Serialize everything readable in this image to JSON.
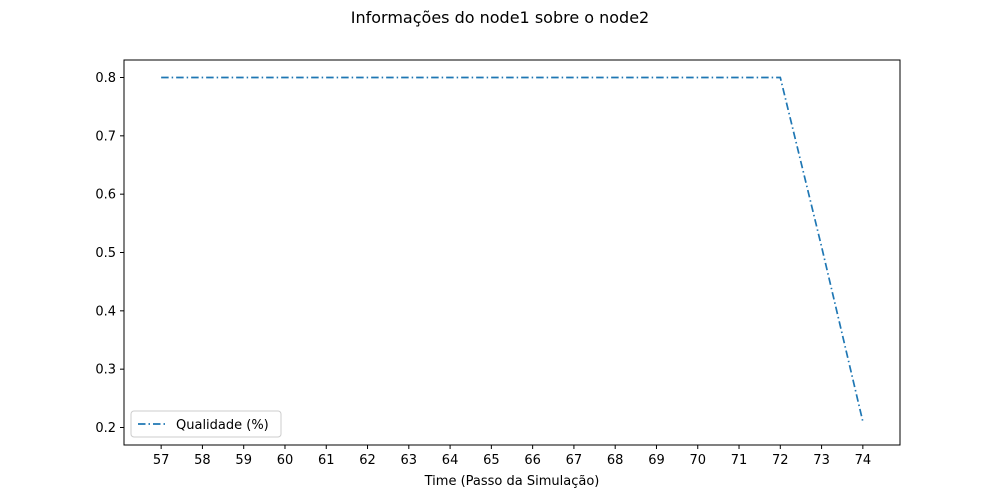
{
  "chart_data": {
    "type": "line",
    "title": "Informações do node1 sobre o node2",
    "xlabel": "Time (Passo da Simulação)",
    "ylabel": "",
    "x": [
      57,
      58,
      59,
      60,
      61,
      62,
      63,
      64,
      65,
      66,
      67,
      68,
      69,
      70,
      71,
      72,
      73,
      74
    ],
    "xticks": [
      57,
      58,
      59,
      60,
      61,
      62,
      63,
      64,
      65,
      66,
      67,
      68,
      69,
      70,
      71,
      72,
      73,
      74
    ],
    "xlim": [
      56.1,
      74.9
    ],
    "yticks": [
      0.2,
      0.3,
      0.4,
      0.5,
      0.6,
      0.7,
      0.8
    ],
    "ylim": [
      0.17,
      0.83
    ],
    "grid": false,
    "legend_position": "lower-left",
    "series": [
      {
        "name": "Qualidade (%)",
        "color": "#1f77b4",
        "linestyle": "dashdot",
        "values": [
          0.8,
          0.8,
          0.8,
          0.8,
          0.8,
          0.8,
          0.8,
          0.8,
          0.8,
          0.8,
          0.8,
          0.8,
          0.8,
          0.8,
          0.8,
          0.8,
          0.51,
          0.21
        ]
      }
    ]
  }
}
